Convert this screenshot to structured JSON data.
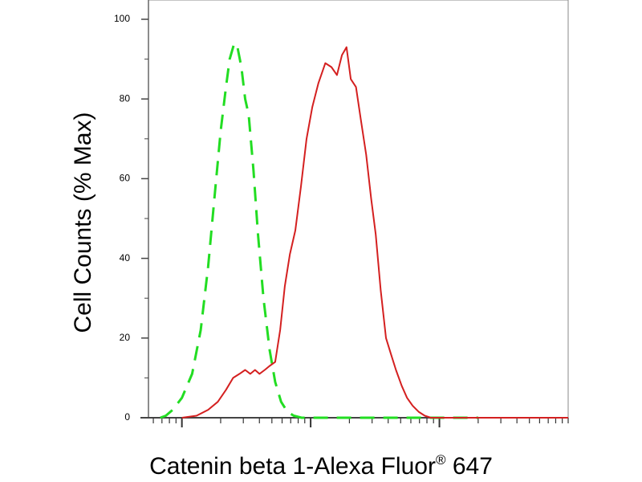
{
  "chart_data": {
    "type": "line",
    "title": "",
    "xlabel": "Catenin beta 1-Alexa Fluor",
    "xlabel_mark": "®",
    "xlabel_suffix": " 647",
    "ylabel": "Cell Counts (% Max)",
    "y_ticks": [
      "0",
      "20",
      "40",
      "60",
      "80",
      "100"
    ],
    "ylim": [
      0,
      100
    ],
    "x_scale": "log",
    "xlim": [
      0.55,
      1000
    ],
    "x_major_ticks": [
      1,
      10,
      100
    ],
    "grid": false,
    "legend": "none",
    "series": [
      {
        "style": "dashed",
        "color": "#22dd22",
        "x": [
          0.68,
          0.75,
          0.85,
          1.0,
          1.2,
          1.4,
          1.6,
          1.8,
          2.0,
          2.2,
          2.35,
          2.55,
          2.7,
          2.9,
          3.1,
          3.3,
          3.6,
          3.9,
          4.3,
          4.8,
          5.3,
          5.9,
          6.6,
          7.4,
          8.5,
          10,
          14,
          20,
          40,
          100,
          200
        ],
        "y": [
          0,
          0.5,
          2,
          5,
          11,
          22,
          38,
          56,
          72,
          83,
          90,
          94,
          93,
          88,
          80,
          76,
          62,
          46,
          30,
          17,
          9,
          4,
          1.5,
          0.5,
          0,
          0,
          0,
          0,
          0,
          0,
          0
        ]
      },
      {
        "style": "solid",
        "color": "#d42020",
        "x": [
          1.0,
          1.3,
          1.6,
          1.9,
          2.2,
          2.5,
          2.8,
          3.1,
          3.4,
          3.7,
          4.0,
          4.4,
          4.8,
          5.3,
          5.8,
          6.3,
          6.9,
          7.6,
          8.4,
          9.3,
          10.3,
          11.5,
          13,
          14.5,
          16,
          17.5,
          19,
          20.5,
          22.5,
          24.5,
          27,
          29.5,
          32,
          35,
          38.5,
          42,
          46,
          51,
          56,
          62,
          69,
          77,
          86,
          97,
          110,
          125,
          145,
          170,
          200,
          400,
          1000
        ],
        "y": [
          0,
          0.5,
          2,
          4,
          7,
          10,
          11,
          12,
          11,
          12,
          11,
          12,
          13,
          14,
          22,
          33,
          41,
          47,
          58,
          70,
          78,
          84,
          89,
          88,
          86,
          91,
          93,
          85,
          83,
          75,
          66,
          55,
          46,
          32,
          20,
          16,
          12,
          8,
          5,
          3,
          1.5,
          0.5,
          0,
          0,
          0,
          0,
          0,
          0,
          0,
          0,
          0
        ]
      }
    ]
  }
}
